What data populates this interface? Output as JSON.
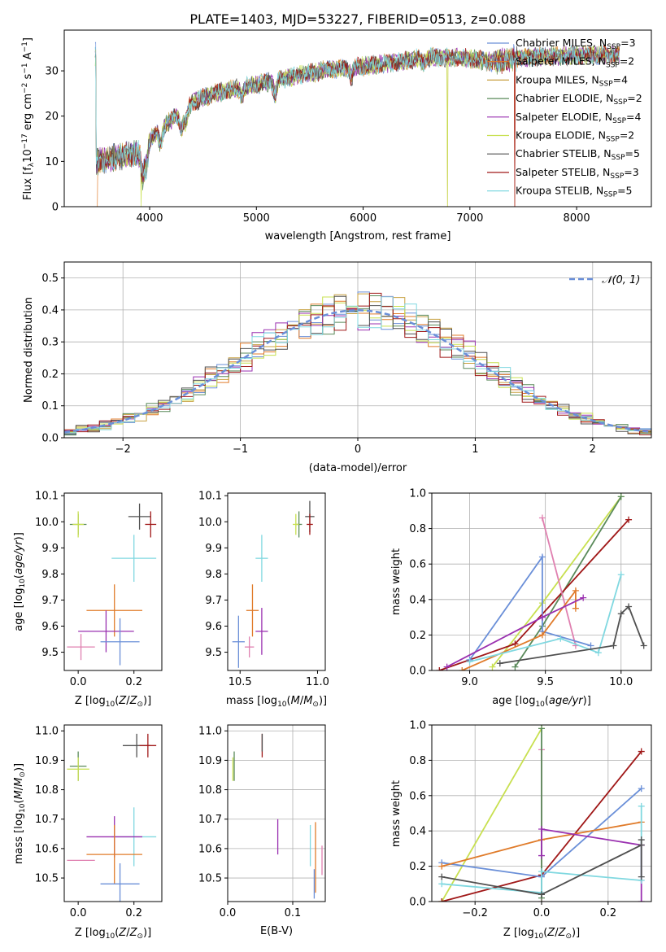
{
  "title": "PLATE=1403, MJD=53227, FIBERID=0513, z=0.088",
  "colors": {
    "c0": "#6a8fd8",
    "c1": "#e07b2a",
    "c2": "#c8a040",
    "c3": "#5a8a5a",
    "c4": "#9a30b0",
    "c5": "#c8e050",
    "c6": "#505050",
    "c7": "#a01818",
    "c8": "#80d8e0",
    "c9": "#e080b0",
    "grid": "#b0b0b0"
  },
  "chart_data": [
    {
      "type": "line",
      "id": "spectrum",
      "xlabel": "wavelength [Angstrom, rest frame]",
      "ylabel": "Flux [fλ10⁻¹⁷ erg cm⁻² s⁻¹ A⁻¹]",
      "xlim": [
        3200,
        8700
      ],
      "ylim": [
        0,
        39
      ],
      "xticks": [
        4000,
        5000,
        6000,
        7000,
        8000
      ],
      "yticks": [
        0,
        10,
        20,
        30
      ],
      "grid": false,
      "legend_position": "top-right",
      "continuum": [
        [
          3500,
          10
        ],
        [
          3700,
          11
        ],
        [
          3900,
          12
        ],
        [
          4000,
          15
        ],
        [
          4200,
          19
        ],
        [
          4400,
          23
        ],
        [
          4600,
          25
        ],
        [
          4800,
          26
        ],
        [
          5000,
          27
        ],
        [
          5200,
          28
        ],
        [
          5400,
          29
        ],
        [
          5600,
          30
        ],
        [
          5800,
          30.5
        ],
        [
          6000,
          31
        ],
        [
          6300,
          32
        ],
        [
          6600,
          33
        ],
        [
          6900,
          33
        ],
        [
          7200,
          32
        ],
        [
          7500,
          33
        ],
        [
          8000,
          33.5
        ],
        [
          8400,
          33.5
        ]
      ],
      "series": [
        {
          "name": "Chabrier MILES, N",
          "sub": "SSP",
          "eq": "=3",
          "color_key": "c0"
        },
        {
          "name": "Salpeter MILES, N",
          "sub": "SSP",
          "eq": "=2",
          "color_key": "c1"
        },
        {
          "name": "Kroupa MILES, N",
          "sub": "SSP",
          "eq": "=4",
          "color_key": "c2"
        },
        {
          "name": "Chabrier ELODIE, N",
          "sub": "SSP",
          "eq": "=2",
          "color_key": "c3"
        },
        {
          "name": "Salpeter ELODIE, N",
          "sub": "SSP",
          "eq": "=4",
          "color_key": "c4"
        },
        {
          "name": "Kroupa ELODIE, N",
          "sub": "SSP",
          "eq": "=2",
          "color_key": "c5"
        },
        {
          "name": "Chabrier STELIB, N",
          "sub": "SSP",
          "eq": "=5",
          "color_key": "c6"
        },
        {
          "name": "Salpeter STELIB, N",
          "sub": "SSP",
          "eq": "=3",
          "color_key": "c7"
        },
        {
          "name": "Kroupa STELIB, N",
          "sub": "SSP",
          "eq": "=5",
          "color_key": "c8"
        }
      ]
    },
    {
      "type": "line",
      "id": "residual-histogram",
      "xlabel": "(data-model)/error",
      "ylabel": "Normed distribution",
      "xlim": [
        -2.5,
        2.5
      ],
      "ylim": [
        0,
        0.55
      ],
      "xticks": [
        -2,
        -1,
        0,
        1,
        2
      ],
      "yticks": [
        0.0,
        0.1,
        0.2,
        0.3,
        0.4,
        0.5
      ],
      "grid": true,
      "legend_position": "top-right",
      "reference": {
        "name": "𝒩(0, 1)",
        "style": "dashed",
        "color_key": "c0"
      }
    },
    {
      "type": "scatter",
      "id": "age-vs-Z",
      "xlabel": "Z [log₁₀(Z/Z⊙)]",
      "ylabel": "age  [log₁₀(age/yr)]",
      "xlim": [
        -0.05,
        0.3
      ],
      "ylim": [
        9.43,
        10.11
      ],
      "xticks": [
        0.0,
        0.2
      ],
      "yticks": [
        9.5,
        9.6,
        9.7,
        9.8,
        9.9,
        10.0,
        10.1
      ],
      "grid": false,
      "points": [
        {
          "x": 0.0,
          "y": 9.99,
          "xerr": 0.03,
          "yerr": 0.04,
          "c": "c3"
        },
        {
          "x": 0.0,
          "y": 9.99,
          "xerr": 0.02,
          "yerr": 0.05,
          "c": "c5"
        },
        {
          "x": 0.22,
          "y": 10.02,
          "xerr": 0.04,
          "yerr": 0.05,
          "c": "c6"
        },
        {
          "x": 0.26,
          "y": 9.99,
          "xerr": 0.02,
          "yerr": 0.05,
          "c": "c7"
        },
        {
          "x": 0.2,
          "y": 9.86,
          "xerr": 0.08,
          "yerr": 0.09,
          "c": "c8"
        },
        {
          "x": 0.13,
          "y": 9.66,
          "xerr": 0.1,
          "yerr": 0.1,
          "c": "c1"
        },
        {
          "x": 0.1,
          "y": 9.58,
          "xerr": 0.1,
          "yerr": 0.08,
          "c": "c4"
        },
        {
          "x": 0.15,
          "y": 9.54,
          "xerr": 0.07,
          "yerr": 0.09,
          "c": "c0"
        },
        {
          "x": 0.01,
          "y": 9.52,
          "xerr": 0.05,
          "yerr": 0.05,
          "c": "c9"
        }
      ]
    },
    {
      "type": "scatter",
      "id": "age-vs-mass",
      "xlabel": "mass [log₁₀(M/M⊙)]",
      "ylabel": "",
      "xlim": [
        10.42,
        11.05
      ],
      "ylim": [
        9.43,
        10.11
      ],
      "xticks": [
        10.5,
        11.0
      ],
      "yticks": [
        9.5,
        9.6,
        9.7,
        9.8,
        9.9,
        10.0,
        10.1
      ],
      "grid": false,
      "points": [
        {
          "x": 10.88,
          "y": 9.99,
          "xerr": 0.02,
          "yerr": 0.05,
          "c": "c3"
        },
        {
          "x": 10.86,
          "y": 9.99,
          "xerr": 0.02,
          "yerr": 0.04,
          "c": "c5"
        },
        {
          "x": 10.95,
          "y": 10.02,
          "xerr": 0.03,
          "yerr": 0.06,
          "c": "c6"
        },
        {
          "x": 10.95,
          "y": 9.99,
          "xerr": 0.02,
          "yerr": 0.04,
          "c": "c7"
        },
        {
          "x": 10.64,
          "y": 9.86,
          "xerr": 0.04,
          "yerr": 0.09,
          "c": "c8"
        },
        {
          "x": 10.58,
          "y": 9.66,
          "xerr": 0.04,
          "yerr": 0.1,
          "c": "c1"
        },
        {
          "x": 10.64,
          "y": 9.58,
          "xerr": 0.04,
          "yerr": 0.09,
          "c": "c4"
        },
        {
          "x": 10.49,
          "y": 9.54,
          "xerr": 0.04,
          "yerr": 0.1,
          "c": "c0"
        },
        {
          "x": 10.56,
          "y": 9.52,
          "xerr": 0.03,
          "yerr": 0.04,
          "c": "c9"
        }
      ]
    },
    {
      "type": "line",
      "id": "weight-vs-age",
      "xlabel": "age  [log₁₀(age/yr)]",
      "ylabel": "mass weight",
      "xlim": [
        8.75,
        10.2
      ],
      "ylim": [
        0,
        1
      ],
      "xticks": [
        9.0,
        9.5,
        10.0
      ],
      "yticks": [
        0.0,
        0.2,
        0.4,
        0.6,
        0.8,
        1.0
      ],
      "grid": true,
      "series": [
        {
          "c": "c5",
          "points": [
            [
              9.15,
              0.02
            ],
            [
              9.48,
              0.38
            ],
            [
              10.0,
              0.98
            ]
          ]
        },
        {
          "c": "c3",
          "points": [
            [
              9.3,
              0.02
            ],
            [
              9.48,
              0.25
            ],
            [
              10.0,
              0.98
            ]
          ]
        },
        {
          "c": "c7",
          "points": [
            [
              8.8,
              0.0
            ],
            [
              9.3,
              0.15
            ],
            [
              10.05,
              0.85
            ]
          ]
        },
        {
          "c": "c9",
          "points": [
            [
              9.48,
              0.86
            ],
            [
              9.7,
              0.14
            ]
          ]
        },
        {
          "c": "c0",
          "points": [
            [
              9.0,
              0.06
            ],
            [
              9.48,
              0.64
            ],
            [
              9.48,
              0.22
            ],
            [
              9.8,
              0.14
            ]
          ]
        },
        {
          "c": "c1",
          "points": [
            [
              8.95,
              0.0
            ],
            [
              9.48,
              0.2
            ],
            [
              9.7,
              0.45
            ],
            [
              9.7,
              0.35
            ]
          ]
        },
        {
          "c": "c4",
          "points": [
            [
              8.85,
              0.02
            ],
            [
              9.48,
              0.3
            ],
            [
              9.75,
              0.41
            ]
          ]
        },
        {
          "c": "c8",
          "points": [
            [
              9.0,
              0.05
            ],
            [
              9.6,
              0.18
            ],
            [
              9.85,
              0.1
            ],
            [
              10.0,
              0.54
            ]
          ]
        },
        {
          "c": "c6",
          "points": [
            [
              9.2,
              0.04
            ],
            [
              9.95,
              0.14
            ],
            [
              10.0,
              0.32
            ],
            [
              10.05,
              0.36
            ],
            [
              10.15,
              0.14
            ]
          ]
        }
      ]
    },
    {
      "type": "scatter",
      "id": "mass-vs-Z",
      "xlabel": "Z [log₁₀(Z/Z⊙)]",
      "ylabel": "mass [log₁₀(M/M⊙)]",
      "xlim": [
        -0.05,
        0.3
      ],
      "ylim": [
        10.42,
        11.02
      ],
      "xticks": [
        0.0,
        0.2
      ],
      "yticks": [
        10.5,
        10.6,
        10.7,
        10.8,
        10.9,
        11.0
      ],
      "grid": false,
      "points": [
        {
          "x": 0.0,
          "y": 10.88,
          "xerr": 0.03,
          "yerr": 0.05,
          "c": "c3"
        },
        {
          "x": 0.0,
          "y": 10.87,
          "xerr": 0.04,
          "yerr": 0.04,
          "c": "c5"
        },
        {
          "x": 0.21,
          "y": 10.95,
          "xerr": 0.05,
          "yerr": 0.04,
          "c": "c6"
        },
        {
          "x": 0.25,
          "y": 10.95,
          "xerr": 0.03,
          "yerr": 0.04,
          "c": "c7"
        },
        {
          "x": 0.2,
          "y": 10.64,
          "xerr": 0.08,
          "yerr": 0.1,
          "c": "c8"
        },
        {
          "x": 0.13,
          "y": 10.64,
          "xerr": 0.1,
          "yerr": 0.07,
          "c": "c4"
        },
        {
          "x": 0.13,
          "y": 10.58,
          "xerr": 0.1,
          "yerr": 0.1,
          "c": "c1"
        },
        {
          "x": 0.15,
          "y": 10.48,
          "xerr": 0.07,
          "yerr": 0.07,
          "c": "c0"
        },
        {
          "x": 0.01,
          "y": 10.56,
          "xerr": 0.05,
          "yerr": 0.0,
          "c": "c9"
        }
      ]
    },
    {
      "type": "scatter",
      "id": "mass-vs-ebv",
      "xlabel": "E(B-V)",
      "ylabel": "",
      "xlim": [
        0.0,
        0.15
      ],
      "ylim": [
        10.42,
        11.02
      ],
      "xticks": [
        0.0,
        0.1
      ],
      "yticks": [
        10.5,
        10.6,
        10.7,
        10.8,
        10.9,
        11.0
      ],
      "grid": true,
      "points": [
        {
          "x": 0.008,
          "y": 10.87,
          "yerr": 0.04,
          "c": "c5"
        },
        {
          "x": 0.01,
          "y": 10.88,
          "yerr": 0.05,
          "c": "c3"
        },
        {
          "x": 0.053,
          "y": 10.95,
          "yerr": 0.04,
          "c": "c7"
        },
        {
          "x": 0.053,
          "y": 10.96,
          "yerr": 0.03,
          "c": "c6"
        },
        {
          "x": 0.077,
          "y": 10.64,
          "yerr": 0.06,
          "c": "c4"
        },
        {
          "x": 0.127,
          "y": 10.61,
          "yerr": 0.07,
          "c": "c8"
        },
        {
          "x": 0.135,
          "y": 10.57,
          "yerr": 0.12,
          "c": "c1"
        },
        {
          "x": 0.133,
          "y": 10.48,
          "yerr": 0.05,
          "c": "c0"
        },
        {
          "x": 0.145,
          "y": 10.56,
          "yerr": 0.05,
          "c": "c9"
        }
      ]
    },
    {
      "type": "line",
      "id": "weight-vs-Z",
      "xlabel": "Z [log₁₀(Z/Z⊙)]",
      "ylabel": "mass weight",
      "xlim": [
        -0.33,
        0.33
      ],
      "ylim": [
        0,
        1
      ],
      "xticks": [
        -0.2,
        0.0,
        0.2
      ],
      "yticks": [
        0.0,
        0.2,
        0.4,
        0.6,
        0.8,
        1.0
      ],
      "grid": true,
      "series": [
        {
          "c": "c5",
          "points": [
            [
              -0.3,
              0.0
            ],
            [
              0.0,
              0.98
            ]
          ]
        },
        {
          "c": "c9",
          "points": [
            [
              0.0,
              0.86
            ],
            [
              0.0,
              0.0
            ]
          ]
        },
        {
          "c": "c3",
          "points": [
            [
              0.0,
              0.98
            ],
            [
              0.0,
              0.02
            ]
          ]
        },
        {
          "c": "c7",
          "points": [
            [
              -0.3,
              0.0
            ],
            [
              0.0,
              0.15
            ],
            [
              0.3,
              0.85
            ]
          ]
        },
        {
          "c": "c0",
          "points": [
            [
              -0.3,
              0.22
            ],
            [
              0.0,
              0.14
            ],
            [
              0.3,
              0.64
            ]
          ]
        },
        {
          "c": "c1",
          "points": [
            [
              -0.3,
              0.2
            ],
            [
              0.0,
              0.35
            ],
            [
              0.3,
              0.45
            ]
          ]
        },
        {
          "c": "c4",
          "points": [
            [
              0.0,
              0.26
            ],
            [
              0.0,
              0.41
            ],
            [
              0.3,
              0.32
            ],
            [
              0.3,
              0.0
            ]
          ]
        },
        {
          "c": "c8",
          "points": [
            [
              -0.3,
              0.1
            ],
            [
              0.0,
              0.05
            ],
            [
              0.0,
              0.17
            ],
            [
              0.3,
              0.12
            ],
            [
              0.3,
              0.54
            ]
          ]
        },
        {
          "c": "c6",
          "points": [
            [
              -0.3,
              0.14
            ],
            [
              0.0,
              0.04
            ],
            [
              0.3,
              0.32
            ],
            [
              0.3,
              0.35
            ],
            [
              0.3,
              0.14
            ]
          ]
        }
      ]
    }
  ]
}
